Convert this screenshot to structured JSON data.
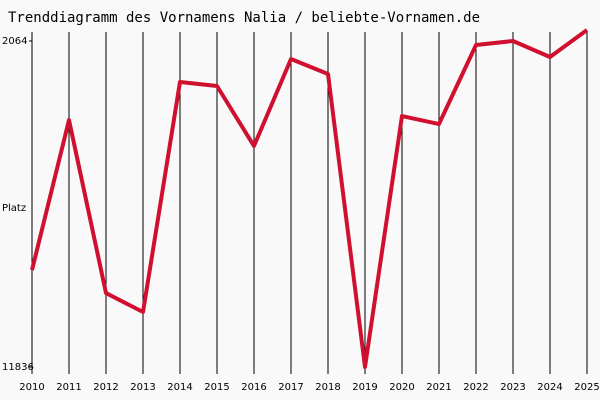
{
  "chart_data": {
    "type": "line",
    "title": "Trenddiagramm des Vornamens Nalia / beliebte-Vornamen.de",
    "y_label": "Platz",
    "categories": [
      "2010",
      "2011",
      "2012",
      "2013",
      "2014",
      "2015",
      "2016",
      "2017",
      "2018",
      "2019",
      "2020",
      "2021",
      "2022",
      "2023",
      "2024",
      "2025"
    ],
    "series": [
      {
        "name": "Nalia",
        "color": "#d0102f",
        "values": [
          8930,
          4433,
          9619,
          10188,
          3293,
          3413,
          5212,
          2604,
          3053,
          11836,
          4313,
          4553,
          2184,
          2064,
          2544,
          1734
        ]
      }
    ],
    "ylim": [
      11836,
      2064
    ],
    "yticks": [
      2064,
      11836
    ],
    "grid": true
  }
}
